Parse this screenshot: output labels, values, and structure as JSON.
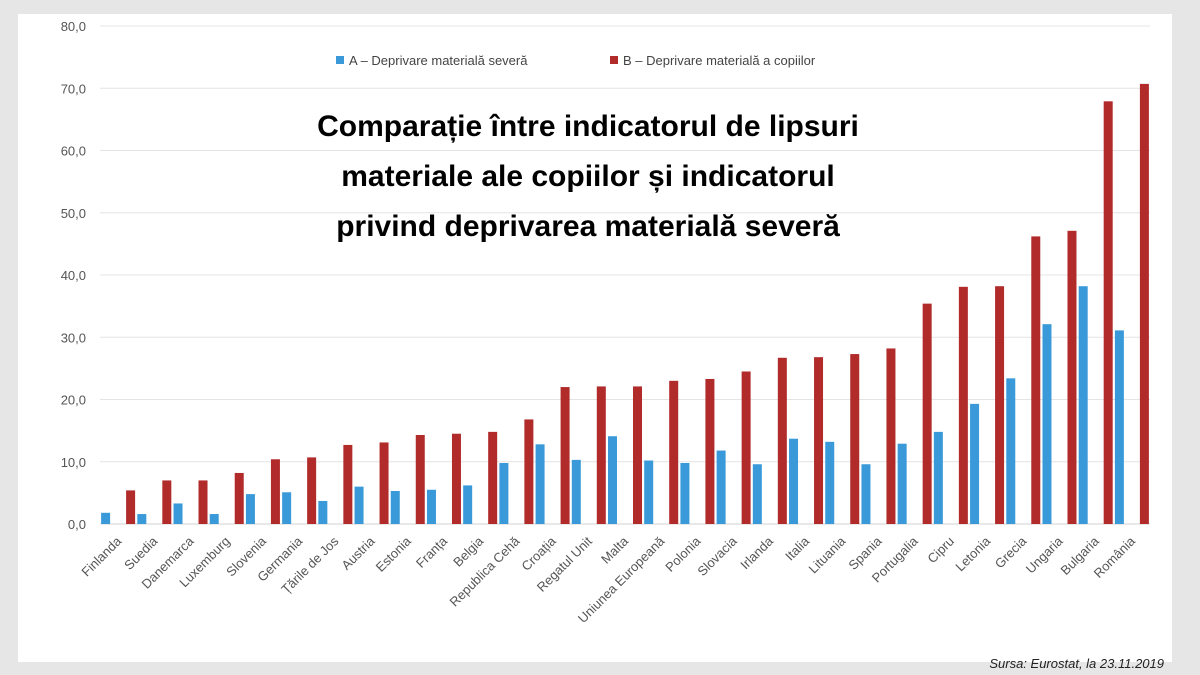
{
  "chart_data": {
    "type": "bar",
    "title": "Comparație între indicatorul de lipsuri materiale ale copiilor și indicatorul privind deprivarea materială severă",
    "title_lines": [
      "Comparație între indicatorul de lipsuri",
      "materiale ale copiilor și indicatorul",
      "privind deprivarea materială severă"
    ],
    "xlabel": "",
    "ylabel": "",
    "ylim": [
      0,
      80
    ],
    "yticks": [
      "0,0",
      "10,0",
      "20,0",
      "30,0",
      "40,0",
      "50,0",
      "60,0",
      "70,0",
      "80,0"
    ],
    "grid": true,
    "legend_position": "top",
    "categories": [
      "Finlanda",
      "Suedia",
      "Danemarca",
      "Luxemburg",
      "Slovenia",
      "Germania",
      "Țările de Jos",
      "Austria",
      "Estonia",
      "Franța",
      "Belgia",
      "Republica Cehă",
      "Croația",
      "Regatul Unit",
      "Malta",
      "Uniunea Europeană",
      "Polonia",
      "Slovacia",
      "Irlanda",
      "Italia",
      "Lituania",
      "Spania",
      "Portugalia",
      "Cipru",
      "Letonia",
      "Grecia",
      "Ungaria",
      "Bulgaria",
      "România"
    ],
    "series": [
      {
        "name": "A – Deprivare materială severă",
        "color": "#3a9ad9",
        "values": [
          1.8,
          1.6,
          3.3,
          1.6,
          4.8,
          5.1,
          3.7,
          6.0,
          5.3,
          5.5,
          6.2,
          9.8,
          12.8,
          10.3,
          14.1,
          10.2,
          9.8,
          11.8,
          9.6,
          13.7,
          13.2,
          9.6,
          12.9,
          14.8,
          19.3,
          23.4,
          32.1,
          38.2,
          31.1
        ]
      },
      {
        "name": "B – Deprivare materială a copiilor",
        "color": "#b22b2b",
        "values": [
          5.4,
          7.0,
          7.0,
          8.2,
          10.4,
          10.7,
          12.7,
          13.1,
          14.3,
          14.5,
          14.8,
          16.8,
          22.0,
          22.1,
          22.1,
          23.0,
          23.3,
          24.5,
          26.7,
          26.8,
          27.3,
          28.2,
          35.4,
          38.1,
          38.2,
          46.2,
          47.1,
          67.9,
          70.7
        ]
      }
    ]
  },
  "source": "Sursa: Eurostat, la 23.11.2019"
}
